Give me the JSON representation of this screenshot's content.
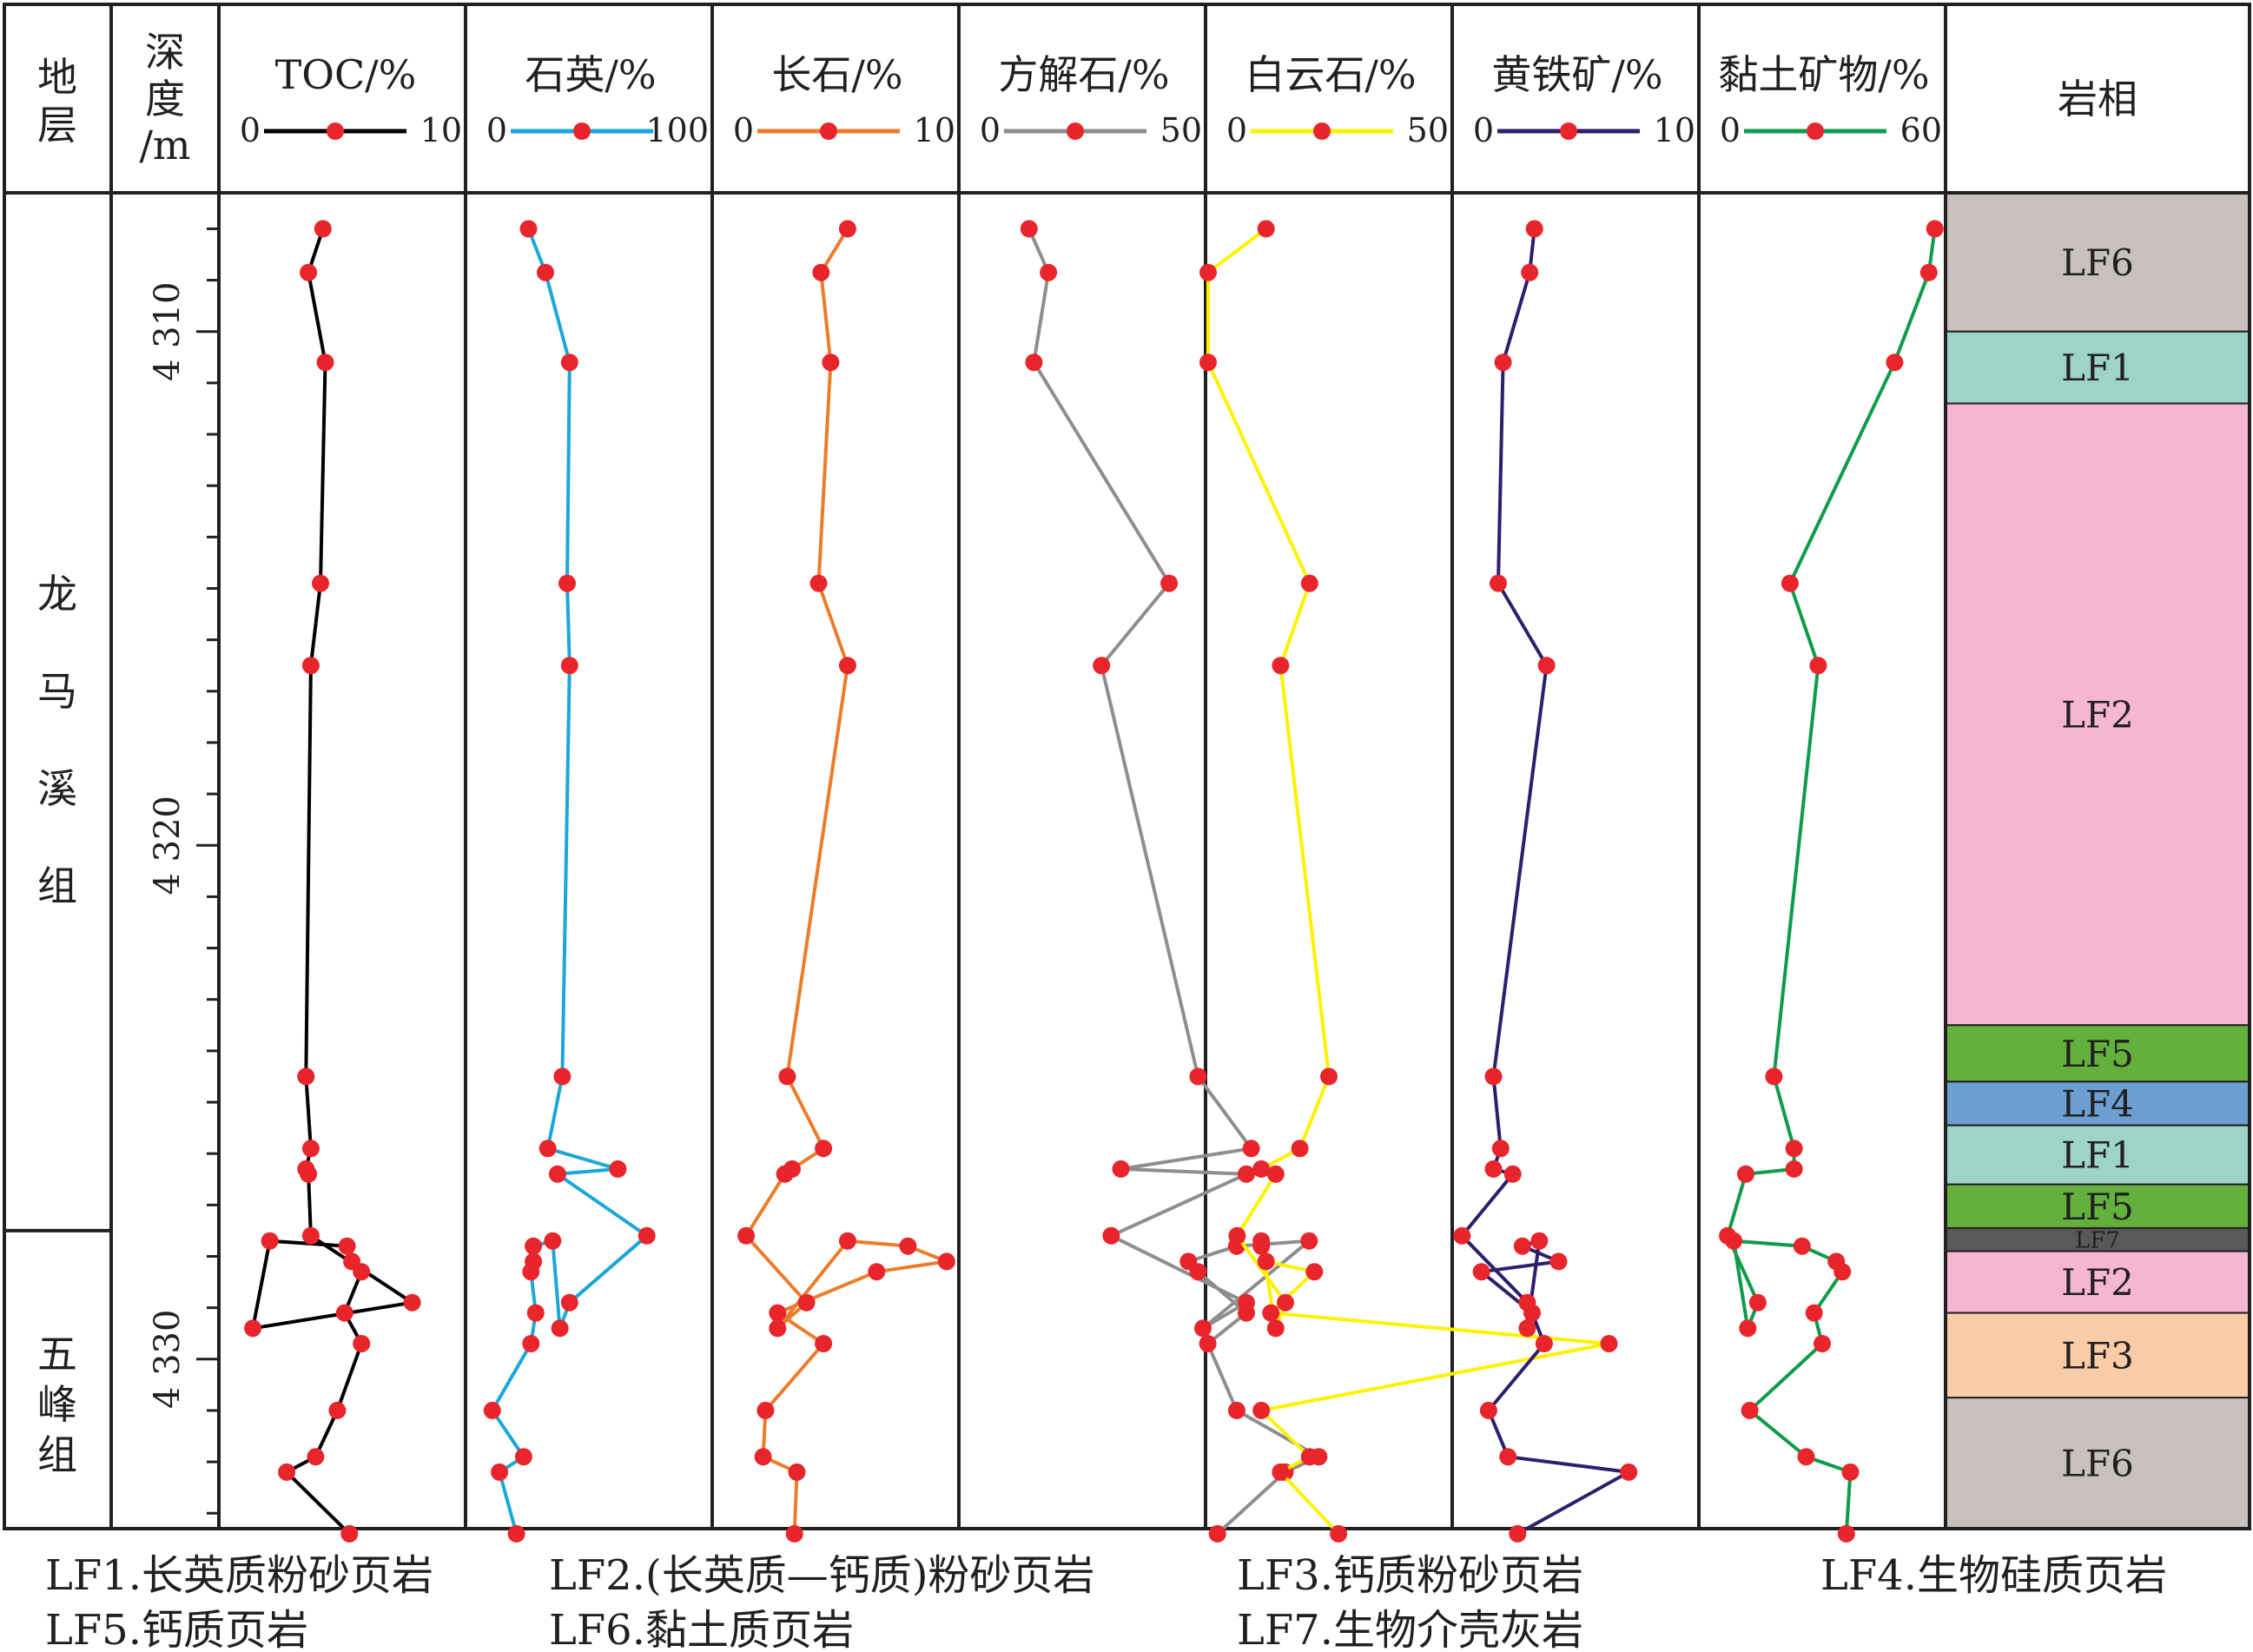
{
  "chart_data": {
    "type": "line",
    "orientation": "vertical-depth-profile",
    "strata": {
      "header": "地层",
      "units": [
        {
          "name": "龙马溪组",
          "top": 4307.3,
          "base": 4327.5
        },
        {
          "name": "五峰组",
          "top": 4327.5,
          "base": 4333.3
        }
      ]
    },
    "depth_axis": {
      "label": "深度/m",
      "range": [
        4307.3,
        4333.3
      ],
      "ticks": [
        4310,
        4320,
        4330
      ],
      "tick_labels": [
        "4 310",
        "4 320",
        "4 330"
      ],
      "minor_step": 1
    },
    "depths": [
      4308,
      4308.85,
      4310.6,
      4314.9,
      4316.5,
      4324.5,
      4325.9,
      4326.3,
      4326.4,
      4327.6,
      4328.9,
      4329.4,
      4327.7,
      4327.8,
      4328.1,
      4328.3,
      4329.1,
      4329.7,
      4331,
      4331.9,
      4332.2,
      4333.4
    ],
    "series": [
      {
        "name": "TOC/%",
        "color": "#000000",
        "range": [
          0,
          10
        ],
        "range_labels": [
          "0",
          "10"
        ],
        "values": [
          4.2,
          3.6,
          4.3,
          4.1,
          3.7,
          3.5,
          3.7,
          3.5,
          3.6,
          3.7,
          7.9,
          1.3,
          2.0,
          5.2,
          5.4,
          5.8,
          5.1,
          5.8,
          4.8,
          3.9,
          2.7,
          5.3
        ]
      },
      {
        "name": "石英/%",
        "color": "#1ba7d8",
        "range": [
          0,
          100
        ],
        "range_labels": [
          "0",
          "100"
        ],
        "values": [
          25,
          32,
          42,
          41,
          42,
          39,
          33,
          62,
          37,
          74,
          42,
          38,
          35,
          27,
          27,
          26,
          28,
          26,
          10,
          23,
          13,
          20
        ]
      },
      {
        "name": "长石/%",
        "color": "#eb7d2a",
        "range": [
          0,
          10
        ],
        "range_labels": [
          "0",
          "10"
        ],
        "values": [
          5.5,
          4.4,
          4.8,
          4.3,
          5.5,
          3.0,
          4.5,
          3.2,
          2.9,
          1.3,
          3.8,
          2.6,
          5.5,
          8.0,
          9.6,
          6.7,
          2.6,
          4.5,
          2.1,
          2.0,
          3.4,
          3.3
        ]
      },
      {
        "name": "方解石/%",
        "color": "#8e8e8e",
        "range": [
          0,
          50
        ],
        "range_labels": [
          "0",
          "50"
        ],
        "values": [
          14,
          18,
          15,
          43,
          29,
          49,
          60,
          33,
          59,
          31,
          59,
          50,
          72,
          57,
          47,
          49,
          59,
          51,
          57,
          74,
          67,
          53
        ]
      },
      {
        "name": "白云石/%",
        "color": "#fff200",
        "range": [
          0,
          50
        ],
        "range_labels": [
          "0",
          "50"
        ],
        "values": [
          12,
          0,
          0,
          21,
          15,
          25,
          19,
          11,
          14,
          6,
          16,
          14,
          11,
          11,
          12,
          22,
          13,
          83,
          11,
          21,
          15,
          27
        ]
      },
      {
        "name": "黄铁矿/%",
        "color": "#2e1f6b",
        "range": [
          0,
          10
        ],
        "range_labels": [
          "0",
          "10"
        ],
        "values": [
          3.3,
          3.1,
          2.0,
          1.8,
          3.8,
          1.6,
          1.9,
          1.6,
          2.4,
          0.3,
          3.0,
          3.0,
          3.5,
          2.8,
          4.3,
          1.1,
          3.2,
          3.7,
          1.4,
          2.2,
          7.2,
          2.6
        ]
      },
      {
        "name": "黏土矿物/%",
        "color": "#0f9b4a",
        "range": [
          0,
          60
        ],
        "range_labels": [
          "0",
          "60"
        ],
        "values": [
          58,
          56.5,
          48,
          22,
          29,
          18,
          23,
          23,
          11,
          6.5,
          14,
          11.5,
          8,
          25,
          33.5,
          35,
          28,
          30,
          12,
          26,
          37,
          36
        ]
      }
    ],
    "lithofacies": {
      "header": "岩相",
      "intervals": [
        {
          "label": "LF6",
          "top": 4307.3,
          "base": 4310.0,
          "color": "#c8c0bd"
        },
        {
          "label": "LF1",
          "top": 4310.0,
          "base": 4311.4,
          "color": "#9ed3c8"
        },
        {
          "label": "LF2",
          "top": 4311.4,
          "base": 4323.5,
          "color": "#f4b6d1"
        },
        {
          "label": "LF5",
          "top": 4323.5,
          "base": 4324.6,
          "color": "#63b13c"
        },
        {
          "label": "LF4",
          "top": 4324.6,
          "base": 4325.45,
          "color": "#6b9fd2"
        },
        {
          "label": "LF1",
          "top": 4325.45,
          "base": 4326.6,
          "color": "#9ed3c8"
        },
        {
          "label": "LF5",
          "top": 4326.6,
          "base": 4327.45,
          "color": "#63b13c"
        },
        {
          "label": "LF7",
          "top": 4327.45,
          "base": 4327.9,
          "color": "#595959"
        },
        {
          "label": "LF2",
          "top": 4327.9,
          "base": 4329.1,
          "color": "#f4b6d1"
        },
        {
          "label": "LF3",
          "top": 4329.1,
          "base": 4330.75,
          "color": "#f9cba7"
        },
        {
          "label": "LF6",
          "top": 4330.75,
          "base": 4333.3,
          "color": "#c8c0bd"
        }
      ]
    },
    "legend": [
      "LF1.长英质粉砂页岩",
      "LF2.(长英质—钙质)粉砂页岩",
      "LF3.钙质粉砂页岩",
      "LF4.生物硅质页岩",
      "LF5.钙质页岩",
      "LF6.黏土质页岩",
      "LF7.生物介壳灰岩"
    ]
  }
}
